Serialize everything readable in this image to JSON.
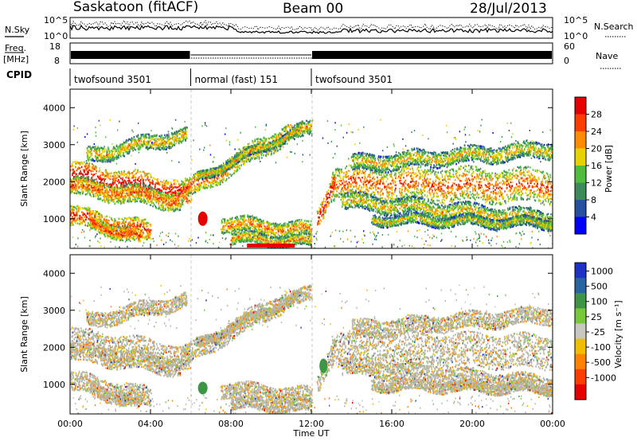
{
  "header": {
    "station": "Saskatoon (fitACF)",
    "beam": "Beam 00",
    "date": "28/Jul/2013"
  },
  "top_panels": {
    "nsky_label": "N.Sky",
    "nsky_ticks": [
      "10^5",
      "10^0"
    ],
    "nsearch_label": "N.Search",
    "nsearch_ticks": [
      "10^5",
      "10^0"
    ],
    "freq_label_1": "Freq.",
    "freq_label_2": "[MHz]",
    "freq_ticks": [
      "18",
      "8"
    ],
    "nave_label": "Nave",
    "nave_ticks": [
      "60",
      "0"
    ],
    "cpid_label": "CPID",
    "cpid_segments": [
      {
        "label": "twofsound 3501",
        "start_hour": 0,
        "end_hour": 6
      },
      {
        "label": "normal (fast) 151",
        "start_hour": 6,
        "end_hour": 12
      },
      {
        "label": "twofsound 3501",
        "start_hour": 12,
        "end_hour": 24
      }
    ]
  },
  "x_axis": {
    "label": "Time UT",
    "ticks": [
      "00:00",
      "04:00",
      "08:00",
      "12:00",
      "16:00",
      "20:00",
      "00:00"
    ],
    "range_hours": [
      0,
      24
    ]
  },
  "colors": {
    "power_scale": [
      "#0000ff",
      "#2850a0",
      "#3c8c5a",
      "#50be3c",
      "#e6d200",
      "#ff8c00",
      "#ff3c00",
      "#e60000"
    ],
    "velocity_scale": [
      "#1e32c8",
      "#2864a0",
      "#3c9646",
      "#78c83c",
      "#c8c8c0",
      "#f0be00",
      "#ff8200",
      "#ff3c00",
      "#e60000"
    ],
    "ground_scatter": "#b4b4aa"
  },
  "chart_data": [
    {
      "type": "heatmap",
      "name": "power",
      "ylabel": "Slant Range [km]",
      "xlabel": "",
      "xlim": [
        0,
        24
      ],
      "ylim": [
        200,
        4500
      ],
      "yticks": [
        "1000",
        "2000",
        "3000",
        "4000"
      ],
      "colorbar_label": "Power [dB]",
      "colorbar_ticks": [
        "4",
        "8",
        "12",
        "16",
        "20",
        "24",
        "28"
      ],
      "zlim": [
        0,
        30
      ]
    },
    {
      "type": "heatmap",
      "name": "velocity",
      "ylabel": "Slant Range [km]",
      "xlabel": "Time UT",
      "xlim": [
        0,
        24
      ],
      "ylim": [
        200,
        4500
      ],
      "yticks": [
        "1000",
        "2000",
        "3000",
        "4000"
      ],
      "colorbar_label": "Velocity [m s⁻¹]",
      "colorbar_ticks": [
        "1000",
        "500",
        "100",
        "25",
        "-25",
        "-100",
        "-500",
        "-1000"
      ]
    }
  ]
}
